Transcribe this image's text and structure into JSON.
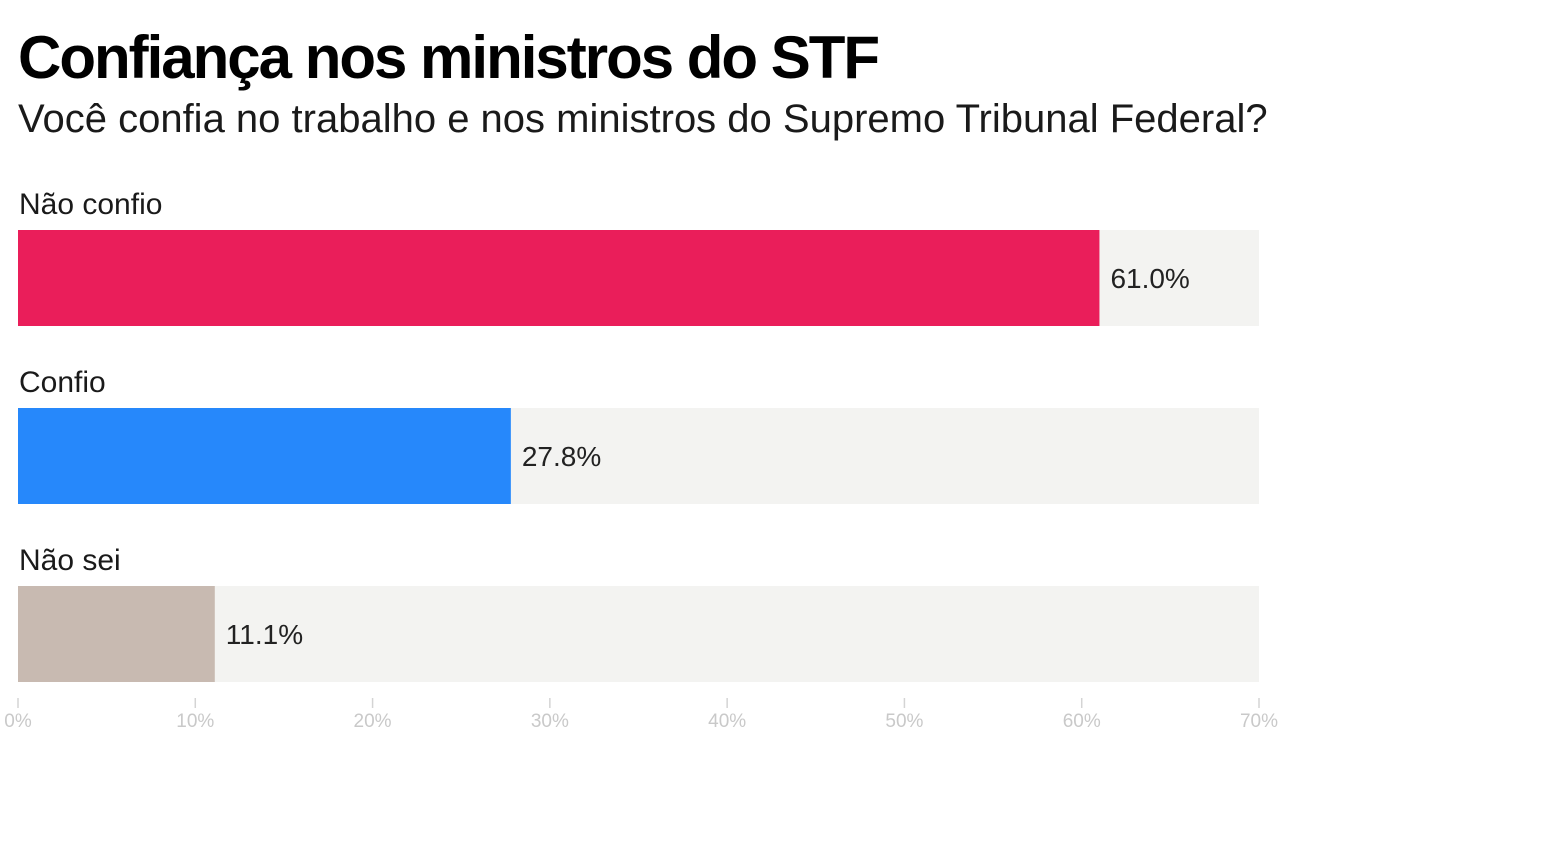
{
  "chart_data": {
    "type": "bar",
    "orientation": "horizontal",
    "title": "Confiança nos ministros do STF",
    "subtitle": "Você confia no trabalho e nos ministros do Supremo Tribunal Federal?",
    "categories": [
      "Não confio",
      "Confio",
      "Não sei"
    ],
    "values": [
      61.0,
      27.8,
      11.1
    ],
    "value_labels": [
      "61.0%",
      "27.8%",
      "11.1%"
    ],
    "colors": [
      "#ea1e5a",
      "#2688fb",
      "#c8bab1"
    ],
    "track_color": "#f3f3f1",
    "xlim": [
      0,
      70
    ],
    "ticks": [
      0,
      10,
      20,
      30,
      40,
      50,
      60,
      70
    ],
    "tick_labels": [
      "0%",
      "10%",
      "20%",
      "30%",
      "40%",
      "50%",
      "60%",
      "70%"
    ],
    "grid": false,
    "legend": "none"
  }
}
